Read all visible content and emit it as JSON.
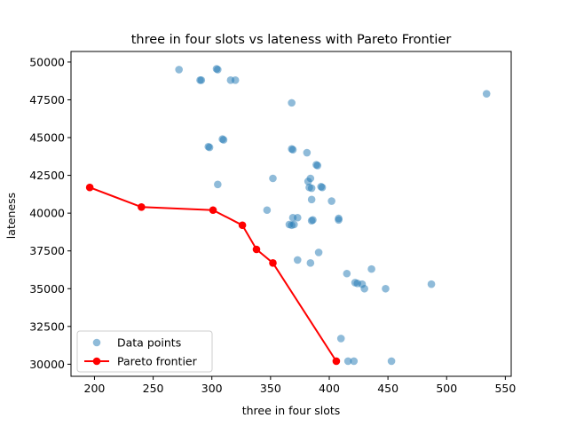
{
  "chart_data": {
    "type": "scatter",
    "title": "three in four slots vs lateness with Pareto Frontier",
    "xlabel": "three in four slots",
    "ylabel": "lateness",
    "xlim": [
      180,
      555
    ],
    "ylim": [
      29200,
      50700
    ],
    "x_ticks": [
      200,
      250,
      300,
      350,
      400,
      450,
      500,
      550
    ],
    "y_ticks": [
      30000,
      32500,
      35000,
      37500,
      40000,
      42500,
      45000,
      47500,
      50000
    ],
    "grid": false,
    "legend_position": "lower-left",
    "series": [
      {
        "name": "Data points",
        "type": "scatter",
        "color": "#1f77b4",
        "points": [
          [
            272,
            49500
          ],
          [
            290,
            48800
          ],
          [
            291,
            48800
          ],
          [
            304,
            49550
          ],
          [
            305,
            49500
          ],
          [
            316,
            48800
          ],
          [
            320,
            48800
          ],
          [
            534,
            47900
          ],
          [
            368,
            47300
          ],
          [
            297,
            44400
          ],
          [
            298,
            44350
          ],
          [
            309,
            44900
          ],
          [
            310,
            44850
          ],
          [
            368,
            44250
          ],
          [
            369,
            44200
          ],
          [
            381,
            44000
          ],
          [
            389,
            43200
          ],
          [
            390,
            43150
          ],
          [
            384,
            42300
          ],
          [
            382,
            42100
          ],
          [
            383,
            41700
          ],
          [
            385,
            41650
          ],
          [
            393,
            41750
          ],
          [
            394,
            41700
          ],
          [
            352,
            42300
          ],
          [
            305,
            41900
          ],
          [
            385,
            40900
          ],
          [
            402,
            40800
          ],
          [
            347,
            40200
          ],
          [
            369,
            39700
          ],
          [
            373,
            39700
          ],
          [
            385,
            39500
          ],
          [
            386,
            39550
          ],
          [
            366,
            39250
          ],
          [
            368,
            39200
          ],
          [
            370,
            39250
          ],
          [
            408,
            39550
          ],
          [
            408,
            39650
          ],
          [
            391,
            37400
          ],
          [
            373,
            36900
          ],
          [
            384,
            36700
          ],
          [
            415,
            36000
          ],
          [
            436,
            36300
          ],
          [
            422,
            35400
          ],
          [
            424,
            35350
          ],
          [
            428,
            35300
          ],
          [
            430,
            35000
          ],
          [
            448,
            35000
          ],
          [
            487,
            35300
          ],
          [
            410,
            31700
          ],
          [
            416,
            30200
          ],
          [
            421,
            30200
          ],
          [
            453,
            30200
          ]
        ]
      },
      {
        "name": "Pareto frontier",
        "type": "line",
        "color": "#ff0000",
        "points": [
          [
            196,
            41700
          ],
          [
            240,
            40400
          ],
          [
            301,
            40200
          ],
          [
            326,
            39200
          ],
          [
            338,
            37600
          ],
          [
            352,
            36700
          ],
          [
            406,
            30200
          ]
        ]
      }
    ]
  }
}
